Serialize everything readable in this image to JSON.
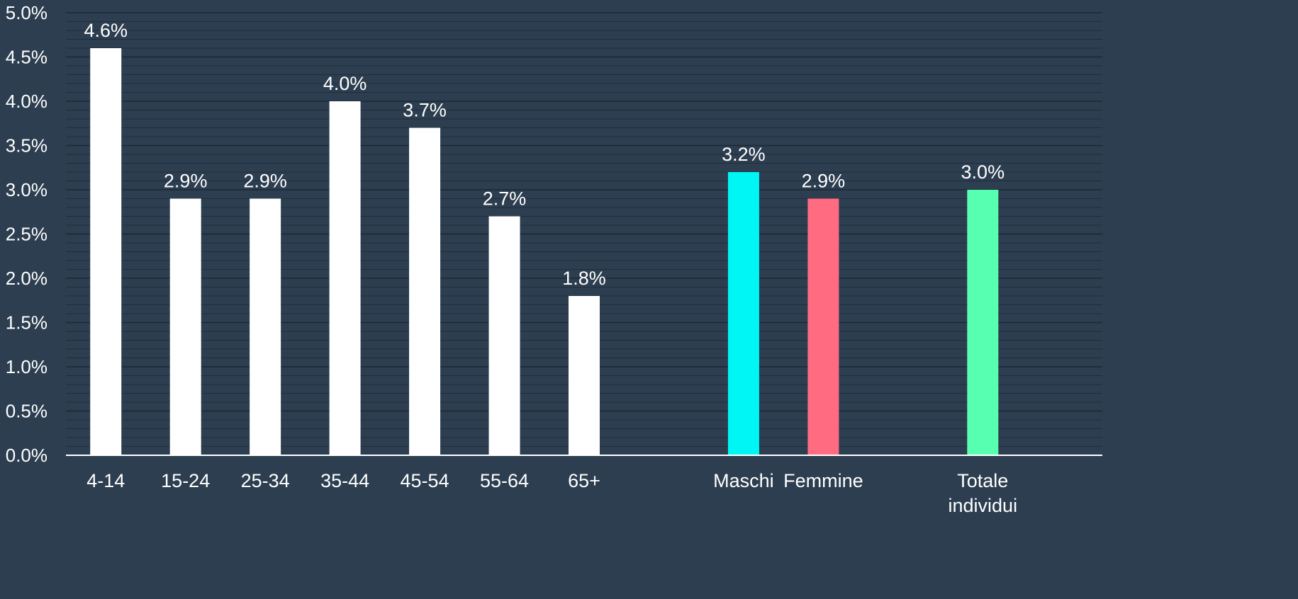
{
  "chart_data": {
    "type": "bar",
    "title": "",
    "xlabel": "",
    "ylabel": "",
    "ylim": [
      0,
      0.05
    ],
    "y_tick_step": 0.005,
    "y_tick_format": "percent_1dp",
    "grid": true,
    "legend": "none",
    "background_color": "#2c3e50",
    "gridline_color": "#1b2836",
    "axis_color": "#ffffff",
    "slots": 13,
    "categories": [
      {
        "label": "4-14",
        "lines": [
          "4-14"
        ],
        "value": 0.046,
        "data_label": "4.6%",
        "color": "#ffffff",
        "slot": 0
      },
      {
        "label": "15-24",
        "lines": [
          "15-24"
        ],
        "value": 0.029,
        "data_label": "2.9%",
        "color": "#ffffff",
        "slot": 1
      },
      {
        "label": "25-34",
        "lines": [
          "25-34"
        ],
        "value": 0.029,
        "data_label": "2.9%",
        "color": "#ffffff",
        "slot": 2
      },
      {
        "label": "35-44",
        "lines": [
          "35-44"
        ],
        "value": 0.04,
        "data_label": "4.0%",
        "color": "#ffffff",
        "slot": 3
      },
      {
        "label": "45-54",
        "lines": [
          "45-54"
        ],
        "value": 0.037,
        "data_label": "3.7%",
        "color": "#ffffff",
        "slot": 4
      },
      {
        "label": "55-64",
        "lines": [
          "55-64"
        ],
        "value": 0.027,
        "data_label": "2.7%",
        "color": "#ffffff",
        "slot": 5
      },
      {
        "label": "65+",
        "lines": [
          "65+"
        ],
        "value": 0.018,
        "data_label": "1.8%",
        "color": "#ffffff",
        "slot": 6
      },
      {
        "label": "Maschi",
        "lines": [
          "Maschi"
        ],
        "value": 0.032,
        "data_label": "3.2%",
        "color": "#00f5f5",
        "slot": 8
      },
      {
        "label": "Femmine",
        "lines": [
          "Femmine"
        ],
        "value": 0.029,
        "data_label": "2.9%",
        "color": "#ff6b81",
        "slot": 9
      },
      {
        "label": "Totale individui",
        "lines": [
          "Totale",
          "individui"
        ],
        "value": 0.03,
        "data_label": "3.0%",
        "color": "#57ffb0",
        "slot": 11
      }
    ]
  }
}
